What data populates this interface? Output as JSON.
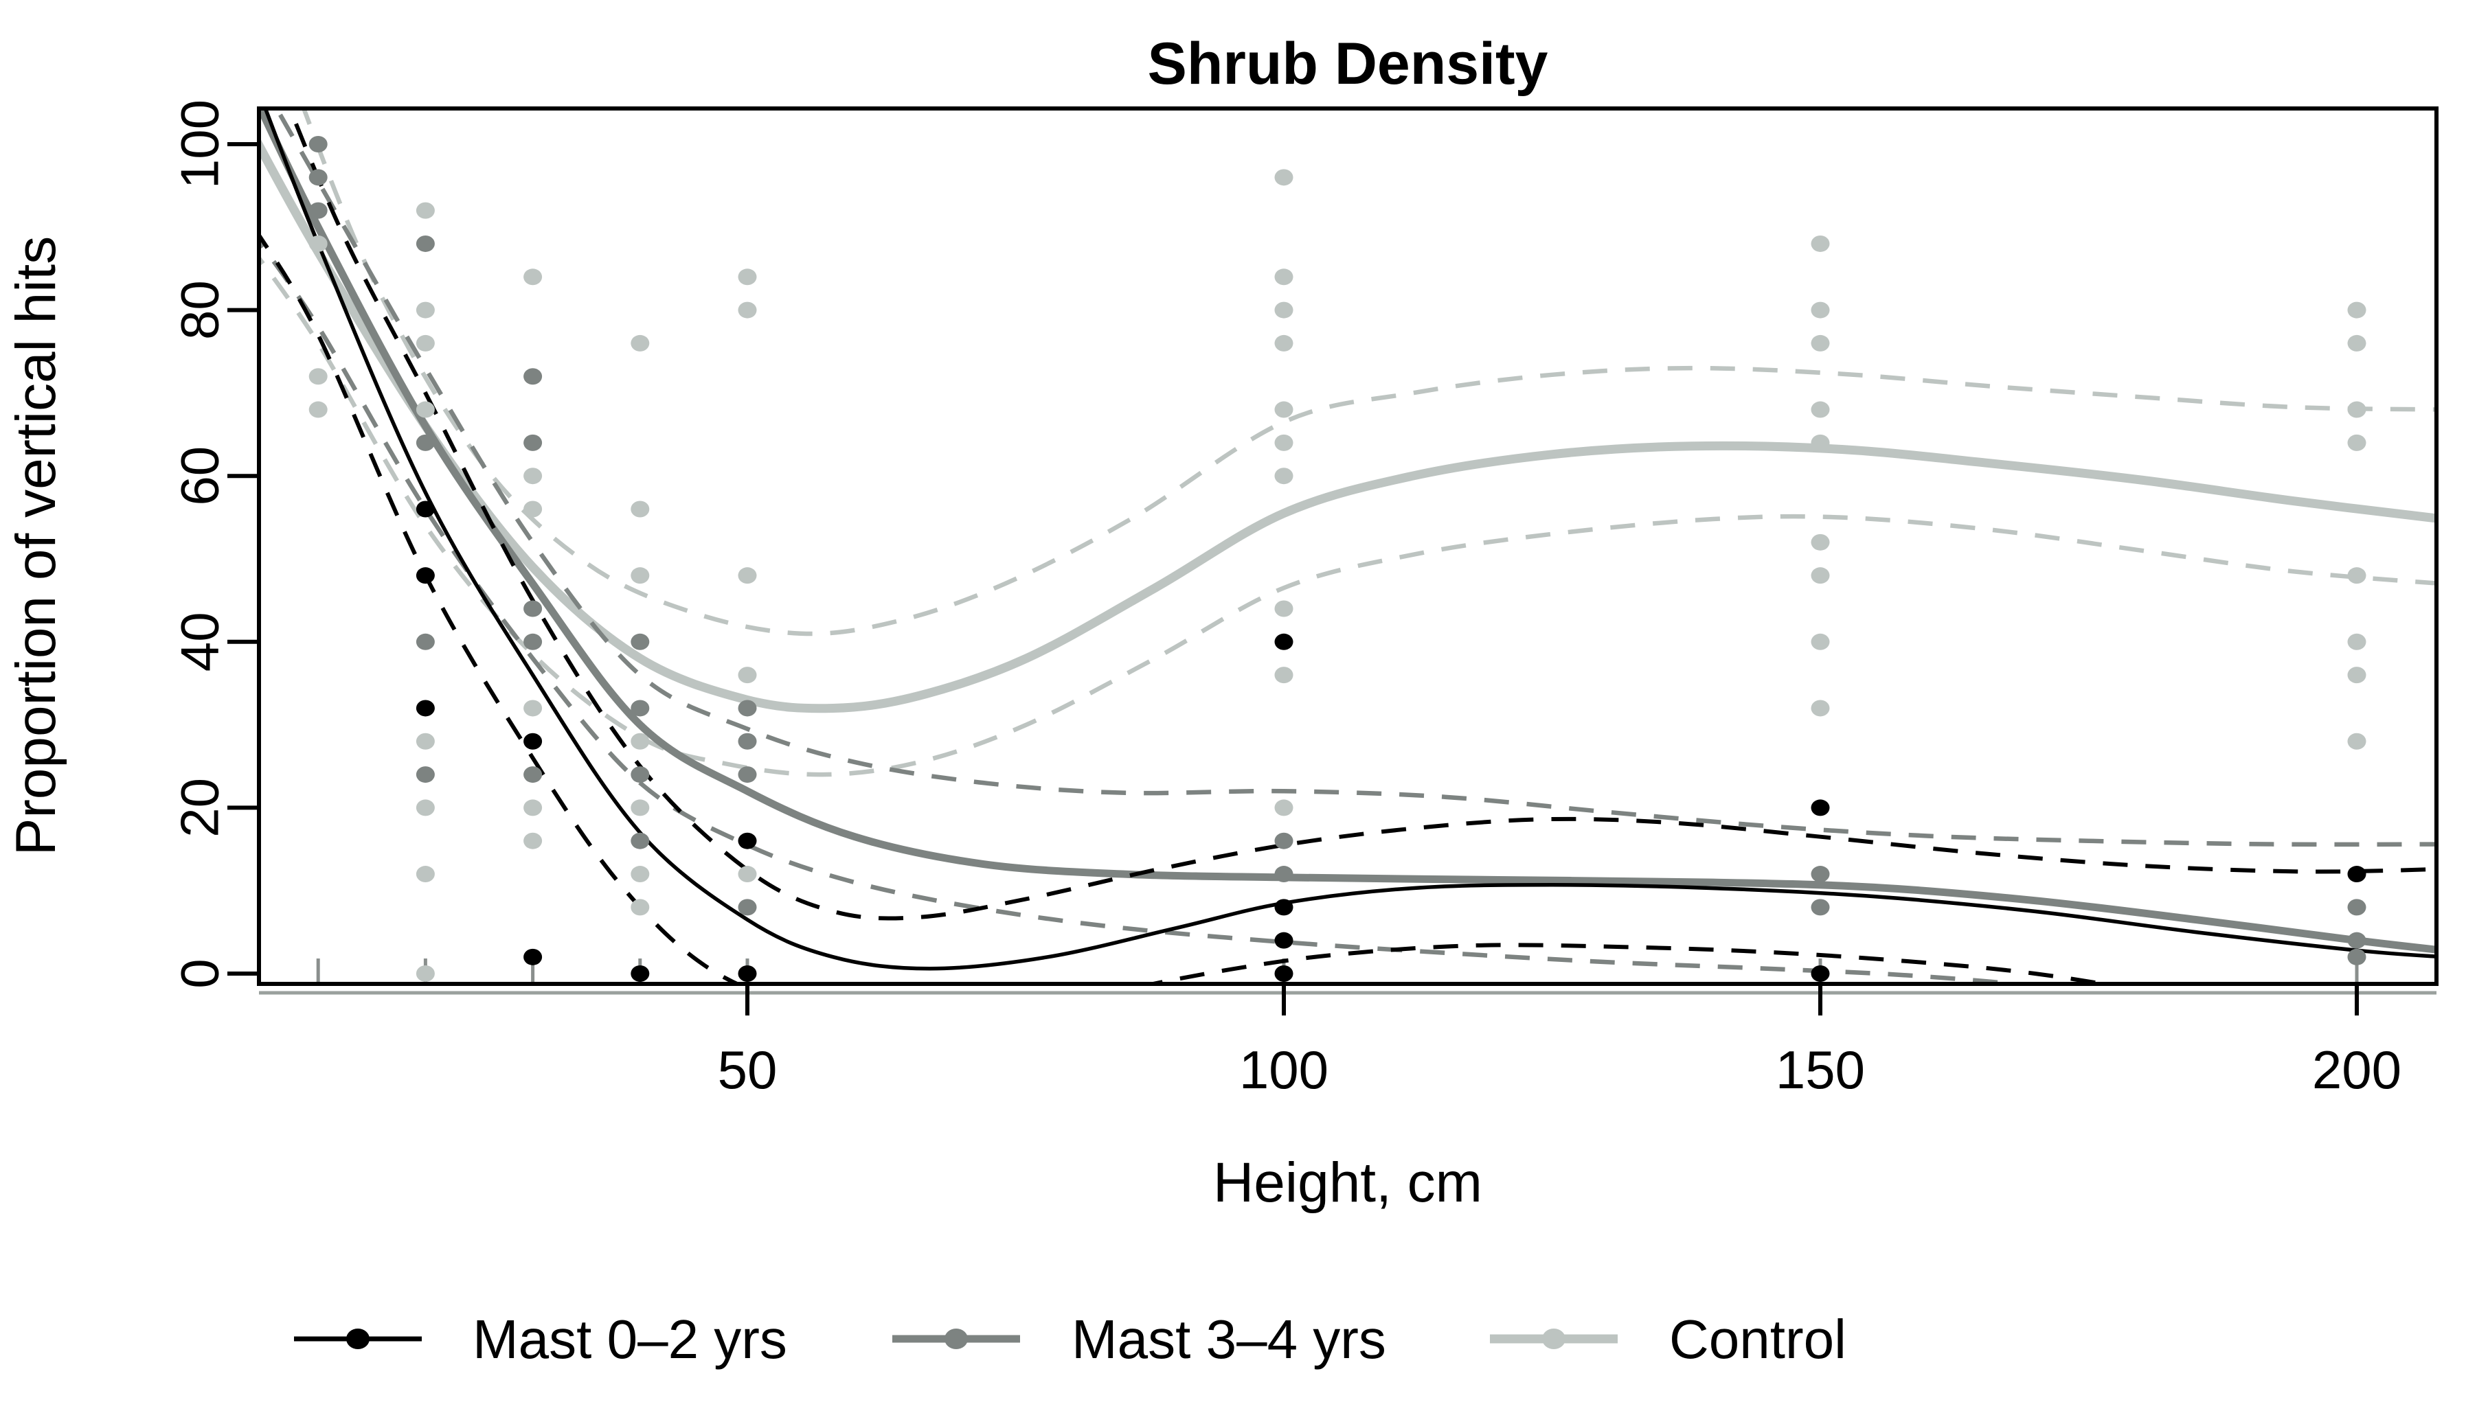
{
  "title": "Shrub Density",
  "axes": {
    "x_label": "Height, cm",
    "y_label": "Proportion of vertical hits"
  },
  "legend": {
    "items": [
      {
        "label": "Mast 0–2 yrs",
        "color": "#000000"
      },
      {
        "label": "Mast 3–4 yrs",
        "color": "#7d8381"
      },
      {
        "label": "Control",
        "color": "#bdc4c1"
      }
    ]
  },
  "chart_data": {
    "type": "scatter",
    "title": "Shrub Density",
    "xlabel": "Height, cm",
    "ylabel": "Proportion of vertical hits",
    "x_ticks": [
      50,
      100,
      150,
      200
    ],
    "y_ticks": [
      0,
      20,
      40,
      60,
      80,
      100
    ],
    "xlim": [
      4,
      208
    ],
    "ylim": [
      -1.5,
      104.5
    ],
    "grid": false,
    "legend_position": "bottom",
    "rug_x": [
      10,
      20,
      30,
      40,
      50,
      100,
      150,
      200
    ],
    "series": [
      {
        "name": "Mast 0–2 yrs",
        "slug": "mast-0-2-yrs",
        "color": "#000000",
        "solid_width": 5.5,
        "dash_width": 6,
        "points": [
          [
            20,
            56
          ],
          [
            20,
            48
          ],
          [
            20,
            32
          ],
          [
            30,
            28
          ],
          [
            30,
            2
          ],
          [
            40,
            0
          ],
          [
            50,
            16
          ],
          [
            50,
            0
          ],
          [
            100,
            40
          ],
          [
            100,
            8
          ],
          [
            100,
            4
          ],
          [
            100,
            0
          ],
          [
            150,
            20
          ],
          [
            150,
            0
          ],
          [
            200,
            12
          ]
        ],
        "smooth": [
          [
            4,
            108
          ],
          [
            10,
            88
          ],
          [
            20,
            58
          ],
          [
            30,
            36
          ],
          [
            40,
            17
          ],
          [
            50,
            6.5
          ],
          [
            58,
            2
          ],
          [
            67,
            0.6
          ],
          [
            78,
            2
          ],
          [
            90,
            5.5
          ],
          [
            100,
            8.5
          ],
          [
            112,
            10.3
          ],
          [
            125,
            10.7
          ],
          [
            140,
            10.3
          ],
          [
            155,
            9.3
          ],
          [
            170,
            7.5
          ],
          [
            185,
            5
          ],
          [
            200,
            2.8
          ],
          [
            208,
            2
          ]
        ],
        "ci_upper": [
          [
            5,
            112
          ],
          [
            12,
            90
          ],
          [
            20,
            70
          ],
          [
            30,
            45
          ],
          [
            40,
            25
          ],
          [
            50,
            12.5
          ],
          [
            58,
            7.5
          ],
          [
            66,
            6.8
          ],
          [
            76,
            9
          ],
          [
            88,
            12.5
          ],
          [
            100,
            15.5
          ],
          [
            112,
            17.5
          ],
          [
            124,
            18.6
          ],
          [
            136,
            18.2
          ],
          [
            150,
            16.5
          ],
          [
            165,
            14.5
          ],
          [
            180,
            13
          ],
          [
            195,
            12.3
          ],
          [
            208,
            12.6
          ]
        ],
        "ci_lower": [
          [
            4,
            90
          ],
          [
            10,
            77
          ],
          [
            20,
            48
          ],
          [
            30,
            26
          ],
          [
            38,
            11
          ],
          [
            46,
            1
          ],
          [
            55,
            -4
          ],
          [
            65,
            -6
          ],
          [
            75,
            -5
          ],
          [
            85,
            -2
          ],
          [
            95,
            0.5
          ],
          [
            105,
            2.3
          ],
          [
            118,
            3.4
          ],
          [
            132,
            3.2
          ],
          [
            145,
            2.6
          ],
          [
            158,
            1.5
          ],
          [
            170,
            0
          ],
          [
            182,
            -2.5
          ],
          [
            195,
            -5.5
          ],
          [
            208,
            -9
          ]
        ]
      },
      {
        "name": "Mast 3–4 yrs",
        "slug": "mast-3-4-yrs",
        "color": "#7d8381",
        "solid_width": 11,
        "dash_width": 6.5,
        "points": [
          [
            10,
            100
          ],
          [
            10,
            96
          ],
          [
            10,
            92
          ],
          [
            20,
            88
          ],
          [
            20,
            64
          ],
          [
            20,
            40
          ],
          [
            20,
            24
          ],
          [
            30,
            72
          ],
          [
            30,
            64
          ],
          [
            30,
            44
          ],
          [
            30,
            40
          ],
          [
            30,
            24
          ],
          [
            40,
            40
          ],
          [
            40,
            32
          ],
          [
            40,
            24
          ],
          [
            40,
            16
          ],
          [
            50,
            32
          ],
          [
            50,
            28
          ],
          [
            50,
            24
          ],
          [
            50,
            8
          ],
          [
            100,
            16
          ],
          [
            100,
            12
          ],
          [
            150,
            12
          ],
          [
            150,
            8
          ],
          [
            200,
            8
          ],
          [
            200,
            4
          ],
          [
            200,
            2
          ]
        ],
        "smooth": [
          [
            4,
            106
          ],
          [
            10,
            90
          ],
          [
            20,
            66
          ],
          [
            30,
            47
          ],
          [
            40,
            30
          ],
          [
            50,
            22
          ],
          [
            60,
            16.5
          ],
          [
            72,
            13.2
          ],
          [
            85,
            12
          ],
          [
            100,
            11.6
          ],
          [
            120,
            11.3
          ],
          [
            140,
            11
          ],
          [
            155,
            10.4
          ],
          [
            170,
            8.8
          ],
          [
            185,
            6.5
          ],
          [
            200,
            4
          ],
          [
            208,
            2.8
          ]
        ],
        "ci_upper": [
          [
            4.5,
            108
          ],
          [
            12,
            91
          ],
          [
            20,
            73
          ],
          [
            30,
            52
          ],
          [
            40,
            36
          ],
          [
            50,
            29.5
          ],
          [
            60,
            25.5
          ],
          [
            72,
            23
          ],
          [
            85,
            21.8
          ],
          [
            100,
            22
          ],
          [
            115,
            21.3
          ],
          [
            130,
            19.5
          ],
          [
            145,
            17.8
          ],
          [
            160,
            16.6
          ],
          [
            175,
            16
          ],
          [
            192,
            15.6
          ],
          [
            208,
            15.6
          ]
        ],
        "ci_lower": [
          [
            3.5,
            90
          ],
          [
            10,
            78
          ],
          [
            20,
            56
          ],
          [
            30,
            38
          ],
          [
            40,
            23
          ],
          [
            50,
            15.5
          ],
          [
            60,
            11
          ],
          [
            72,
            7.8
          ],
          [
            85,
            5.5
          ],
          [
            100,
            3.8
          ],
          [
            115,
            2.5
          ],
          [
            130,
            1.4
          ],
          [
            145,
            0.6
          ],
          [
            158,
            -0.2
          ],
          [
            170,
            -1.5
          ],
          [
            182,
            -3.5
          ],
          [
            195,
            -6
          ],
          [
            208,
            -9
          ]
        ]
      },
      {
        "name": "Control",
        "slug": "control",
        "color": "#bdc4c1",
        "solid_width": 13,
        "dash_width": 6.5,
        "points": [
          [
            10,
            88
          ],
          [
            10,
            72
          ],
          [
            10,
            68
          ],
          [
            20,
            92
          ],
          [
            20,
            80
          ],
          [
            20,
            76
          ],
          [
            20,
            68
          ],
          [
            20,
            28
          ],
          [
            20,
            20
          ],
          [
            20,
            12
          ],
          [
            20,
            0
          ],
          [
            30,
            84
          ],
          [
            30,
            60
          ],
          [
            30,
            56
          ],
          [
            30,
            32
          ],
          [
            30,
            20
          ],
          [
            30,
            16
          ],
          [
            40,
            76
          ],
          [
            40,
            56
          ],
          [
            40,
            48
          ],
          [
            40,
            28
          ],
          [
            40,
            20
          ],
          [
            40,
            12
          ],
          [
            40,
            8
          ],
          [
            50,
            84
          ],
          [
            50,
            80
          ],
          [
            50,
            48
          ],
          [
            50,
            36
          ],
          [
            50,
            12
          ],
          [
            100,
            96
          ],
          [
            100,
            84
          ],
          [
            100,
            80
          ],
          [
            100,
            76
          ],
          [
            100,
            68
          ],
          [
            100,
            64
          ],
          [
            100,
            60
          ],
          [
            100,
            44
          ],
          [
            100,
            36
          ],
          [
            100,
            20
          ],
          [
            150,
            88
          ],
          [
            150,
            80
          ],
          [
            150,
            76
          ],
          [
            150,
            68
          ],
          [
            150,
            64
          ],
          [
            150,
            52
          ],
          [
            150,
            48
          ],
          [
            150,
            40
          ],
          [
            150,
            32
          ],
          [
            200,
            80
          ],
          [
            200,
            76
          ],
          [
            200,
            68
          ],
          [
            200,
            64
          ],
          [
            200,
            48
          ],
          [
            200,
            40
          ],
          [
            200,
            36
          ],
          [
            200,
            28
          ]
        ],
        "smooth": [
          [
            4,
            101
          ],
          [
            10,
            87
          ],
          [
            20,
            66
          ],
          [
            30,
            49
          ],
          [
            40,
            38
          ],
          [
            50,
            33
          ],
          [
            58,
            32
          ],
          [
            66,
            33.5
          ],
          [
            76,
            38
          ],
          [
            88,
            46.5
          ],
          [
            100,
            55.5
          ],
          [
            112,
            60
          ],
          [
            125,
            62.6
          ],
          [
            138,
            63.6
          ],
          [
            152,
            63.2
          ],
          [
            166,
            61.5
          ],
          [
            180,
            59.5
          ],
          [
            194,
            57
          ],
          [
            208,
            54.8
          ]
        ],
        "ci_upper": [
          [
            7,
            110
          ],
          [
            15,
            84
          ],
          [
            25,
            62
          ],
          [
            35,
            49.5
          ],
          [
            45,
            43.5
          ],
          [
            55,
            41
          ],
          [
            64,
            42.5
          ],
          [
            74,
            47
          ],
          [
            86,
            55
          ],
          [
            100,
            66.5
          ],
          [
            112,
            70
          ],
          [
            125,
            72.2
          ],
          [
            138,
            73
          ],
          [
            152,
            72.3
          ],
          [
            166,
            70.8
          ],
          [
            180,
            69.5
          ],
          [
            194,
            68.3
          ],
          [
            208,
            68
          ]
        ],
        "ci_lower": [
          [
            3.5,
            88
          ],
          [
            10,
            76
          ],
          [
            20,
            54
          ],
          [
            30,
            38.5
          ],
          [
            40,
            28.5
          ],
          [
            48,
            25.3
          ],
          [
            57,
            24
          ],
          [
            66,
            25.5
          ],
          [
            76,
            30
          ],
          [
            88,
            38
          ],
          [
            100,
            46.5
          ],
          [
            112,
            50.5
          ],
          [
            125,
            53
          ],
          [
            140,
            54.8
          ],
          [
            152,
            55
          ],
          [
            166,
            53.5
          ],
          [
            180,
            51
          ],
          [
            194,
            48.5
          ],
          [
            208,
            47
          ]
        ]
      }
    ]
  }
}
